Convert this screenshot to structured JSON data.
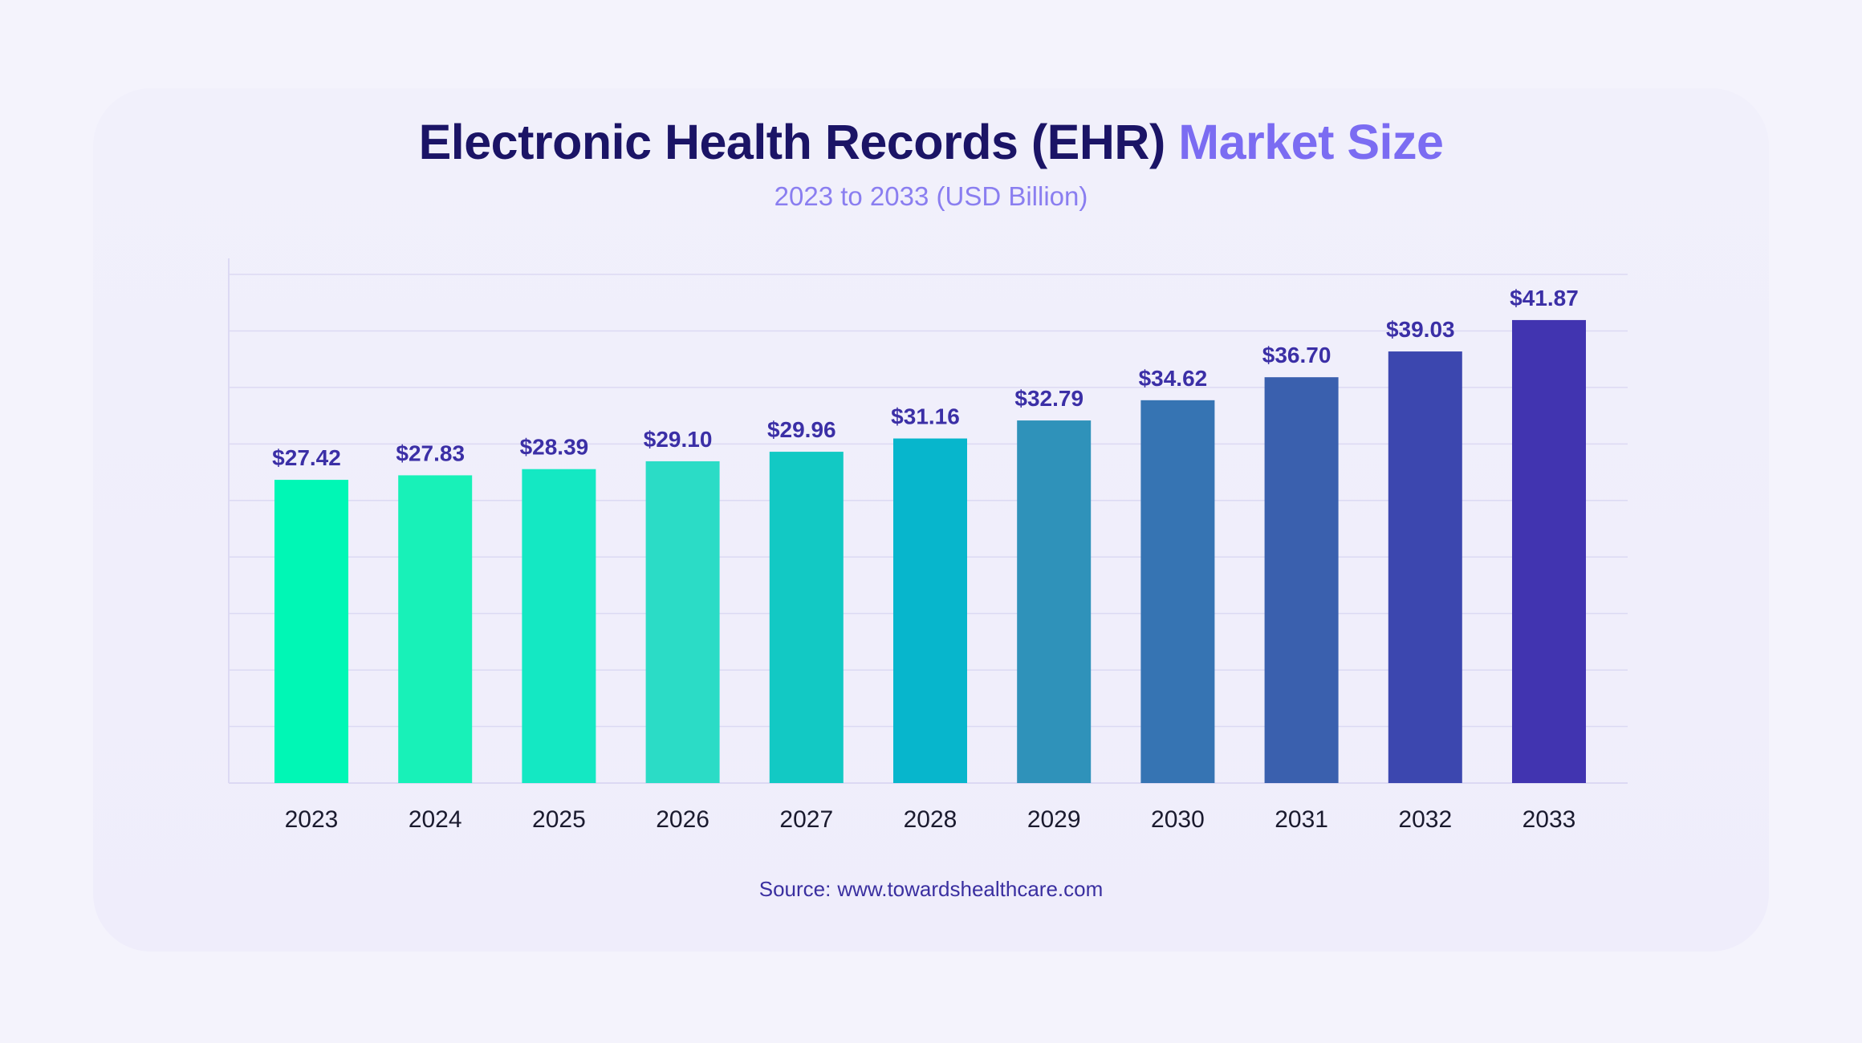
{
  "title": {
    "main": "Electronic Health Records (EHR)",
    "accent": "Market Size"
  },
  "subtitle": "2023 to 2033 (USD Billion)",
  "source": {
    "label": "Source:",
    "url": "www.towardshealthcare.com"
  },
  "colors": {
    "title": "#1b1466",
    "accent": "#7b6cf2",
    "value_label": "#3b2fa6",
    "gridline": "#dcd9f3",
    "bars": [
      "#00f7b5",
      "#18f1b8",
      "#14e8c3",
      "#2bdcc6",
      "#12c9c4",
      "#07b6cc",
      "#2f92ba",
      "#3674b3",
      "#3a60ae",
      "#3c47af",
      "#4134b0"
    ]
  },
  "chart_data": {
    "type": "bar",
    "title": "Electronic Health Records (EHR) Market Size",
    "subtitle": "2023 to 2033 (USD Billion)",
    "categories": [
      "2023",
      "2024",
      "2025",
      "2026",
      "2027",
      "2028",
      "2029",
      "2030",
      "2031",
      "2032",
      "2033"
    ],
    "values": [
      27.42,
      27.83,
      28.39,
      29.1,
      29.96,
      31.16,
      32.79,
      34.62,
      36.7,
      39.03,
      41.87
    ],
    "value_labels": [
      "$27.42",
      "$27.83",
      "$28.39",
      "$29.10",
      "$29.96",
      "$31.16",
      "$32.79",
      "$34.62",
      "$36.70",
      "$39.03",
      "$41.87"
    ],
    "xlabel": "",
    "ylabel": "",
    "ylim": [
      0,
      46
    ],
    "grid": true,
    "gridlines": 9
  }
}
